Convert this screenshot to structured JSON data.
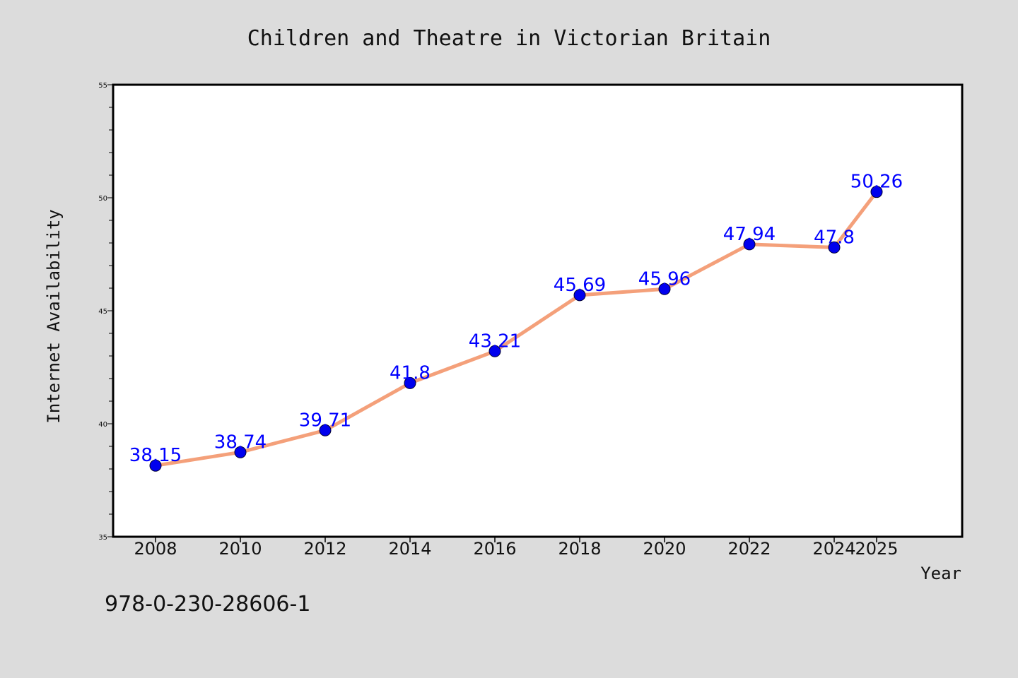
{
  "chart_data": {
    "type": "line",
    "title": "Children and Theatre in Victorian Britain",
    "xlabel": "Year",
    "ylabel": "Internet Availability",
    "categories": [
      "2008",
      "2010",
      "2012",
      "2014",
      "2016",
      "2018",
      "2020",
      "2022",
      "2024",
      "2025"
    ],
    "series": [
      {
        "values": [
          38.15,
          38.74,
          39.71,
          41.8,
          43.21,
          45.69,
          45.96,
          47.94,
          47.8,
          50.26
        ],
        "labels": [
          "38.15",
          "38.74",
          "39.71",
          "41.8",
          "43.21",
          "45.69",
          "45.96",
          "47.94",
          "47.8",
          "50.26"
        ]
      }
    ],
    "ylim": [
      35,
      55
    ],
    "yticks": [
      "35",
      "40",
      "45",
      "50",
      "55"
    ],
    "grid": false,
    "legend": "none",
    "colors": {
      "line": "#f4a07a",
      "marker": "#0000ee",
      "label": "#0000ff",
      "axes_bg": "#ffffff",
      "figure_bg": "#dcdcdc"
    }
  },
  "footer": {
    "isbn": "978-0-230-28606-1"
  }
}
